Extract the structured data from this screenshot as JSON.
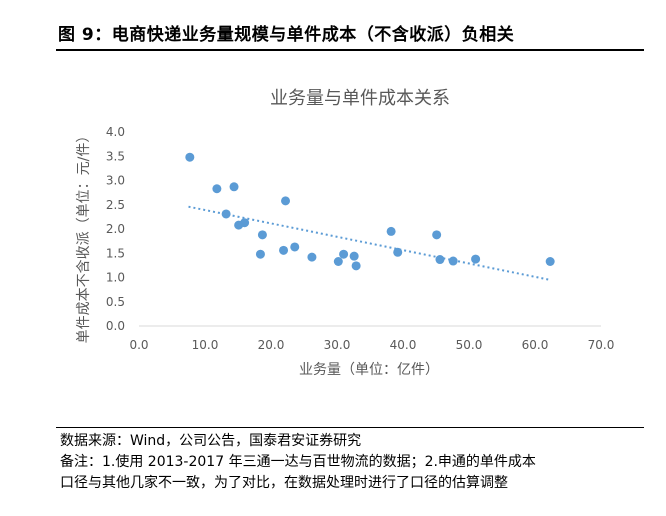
{
  "figure": {
    "title": "图 9：电商快递业务量规模与单件成本（不含收派）负相关"
  },
  "chart_data": {
    "type": "scatter",
    "title": "业务量与单件成本关系",
    "xlabel": "业务量（单位：亿件）",
    "ylabel": "单件成本不含收派（单位：元/件）",
    "xlim": [
      0,
      70
    ],
    "ylim": [
      0,
      4
    ],
    "xticks": [
      "0.0",
      "10.0",
      "20.0",
      "30.0",
      "40.0",
      "50.0",
      "60.0",
      "70.0"
    ],
    "yticks": [
      "0.0",
      "0.5",
      "1.0",
      "1.5",
      "2.0",
      "2.5",
      "3.0",
      "3.5",
      "4.0"
    ],
    "grid": false,
    "legend": "none",
    "marker_color": "#5b9bd5",
    "trendline": {
      "style": "dotted",
      "from": [
        7.5,
        2.46
      ],
      "to": [
        62.3,
        0.95
      ]
    },
    "points": [
      {
        "x": 7.7,
        "y": 3.48
      },
      {
        "x": 11.8,
        "y": 2.83
      },
      {
        "x": 13.2,
        "y": 2.31
      },
      {
        "x": 14.4,
        "y": 2.87
      },
      {
        "x": 15.1,
        "y": 2.08
      },
      {
        "x": 16.0,
        "y": 2.13
      },
      {
        "x": 18.4,
        "y": 1.48
      },
      {
        "x": 18.7,
        "y": 1.88
      },
      {
        "x": 21.9,
        "y": 1.56
      },
      {
        "x": 22.2,
        "y": 2.58
      },
      {
        "x": 23.6,
        "y": 1.63
      },
      {
        "x": 26.2,
        "y": 1.42
      },
      {
        "x": 30.2,
        "y": 1.33
      },
      {
        "x": 31.0,
        "y": 1.48
      },
      {
        "x": 32.6,
        "y": 1.44
      },
      {
        "x": 32.9,
        "y": 1.24
      },
      {
        "x": 38.2,
        "y": 1.95
      },
      {
        "x": 39.2,
        "y": 1.52
      },
      {
        "x": 45.1,
        "y": 1.88
      },
      {
        "x": 45.6,
        "y": 1.37
      },
      {
        "x": 47.6,
        "y": 1.34
      },
      {
        "x": 51.0,
        "y": 1.38
      },
      {
        "x": 62.3,
        "y": 1.33
      }
    ]
  },
  "notes": {
    "source": "数据来源：Wind，公司公告，国泰君安证券研究",
    "remark_line1": "备注：1.使用 2013-2017 年三通一达与百世物流的数据；2.申通的单件成本",
    "remark_line2": "口径与其他几家不一致，为了对比，在数据处理时进行了口径的估算调整"
  }
}
